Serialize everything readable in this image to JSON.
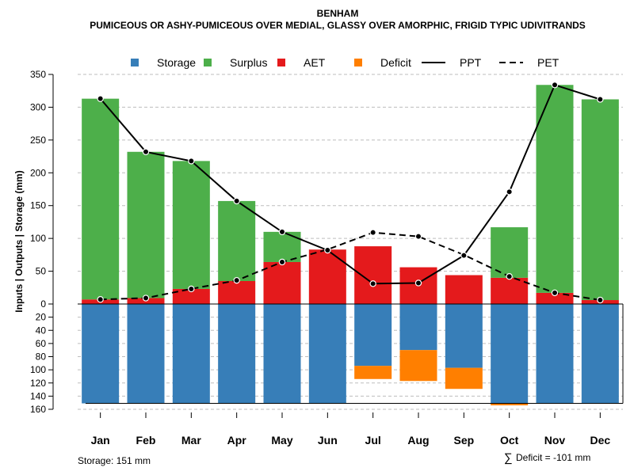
{
  "chart_data": {
    "type": "bar",
    "title": "BENHAM",
    "subtitle": "PUMICEOUS OR ASHY-PUMICEOUS OVER MEDIAL, GLASSY OVER AMORPHIC, FRIGID TYPIC UDIVITRANDS",
    "ylabel": "Inputs | Outputs | Storage    (mm)",
    "upper_ylim": [
      0,
      350
    ],
    "lower_ylim": [
      0,
      160
    ],
    "upper_ticks": [
      "350",
      "300",
      "250",
      "200",
      "150",
      "100",
      "50",
      "0"
    ],
    "lower_ticks": [
      "20",
      "40",
      "60",
      "80",
      "100",
      "120",
      "140",
      "160"
    ],
    "categories": [
      "Jan",
      "Feb",
      "Mar",
      "Apr",
      "May",
      "Jun",
      "Jul",
      "Aug",
      "Sep",
      "Oct",
      "Nov",
      "Dec"
    ],
    "legend": [
      {
        "name": "Storage",
        "type": "box",
        "color": "#377eb8"
      },
      {
        "name": "Surplus",
        "type": "box",
        "color": "#4daf4a"
      },
      {
        "name": "AET",
        "type": "box",
        "color": "#e41a1c"
      },
      {
        "name": "Deficit",
        "type": "box",
        "color": "#ff7f00"
      },
      {
        "name": "PPT",
        "type": "solid-line",
        "color": "#000000"
      },
      {
        "name": "PET",
        "type": "dashed-line",
        "color": "#000000"
      }
    ],
    "series": {
      "AET": [
        7,
        9,
        23,
        35,
        64,
        83,
        88,
        56,
        44,
        40,
        17,
        6
      ],
      "Surplus": [
        306,
        223,
        195,
        122,
        46,
        0,
        0,
        0,
        0,
        77,
        317,
        306
      ],
      "PPT": [
        313,
        232,
        218,
        157,
        110,
        82,
        31,
        32,
        74,
        171,
        334,
        312
      ],
      "PET": [
        7,
        9,
        23,
        36,
        64,
        83,
        109,
        103,
        75,
        42,
        17,
        6
      ],
      "Storage": [
        151,
        151,
        151,
        151,
        151,
        151,
        94,
        70,
        97,
        151,
        151,
        151
      ],
      "Deficit": [
        0,
        0,
        0,
        0,
        0,
        0,
        20,
        47,
        32,
        3,
        0,
        0
      ]
    },
    "storage_capacity": 151,
    "colors": {
      "storage": "#377eb8",
      "surplus": "#4daf4a",
      "aet": "#e41a1c",
      "deficit": "#ff7f00",
      "grid": "#bdbdbd"
    }
  },
  "footer": {
    "storage_note": "Storage: 151 mm",
    "deficit_symbol": "∑",
    "deficit_note": "Deficit = -101 mm"
  }
}
